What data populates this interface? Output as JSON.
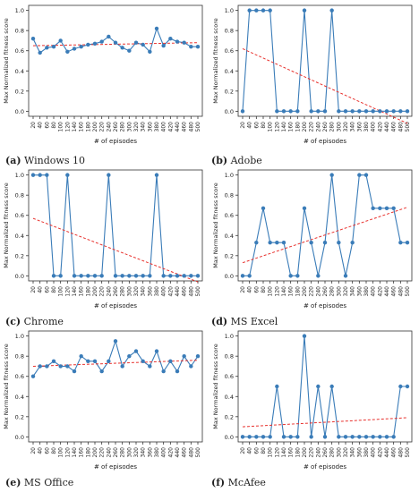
{
  "colors": {
    "series": "#3a7cb8",
    "trend": "#e8322e",
    "axis": "#333333",
    "text": "#222222"
  },
  "episodes": [
    "20",
    "40",
    "60",
    "80",
    "100",
    "120",
    "140",
    "160",
    "180",
    "200",
    "220",
    "240",
    "260",
    "280",
    "300",
    "320",
    "340",
    "360",
    "380",
    "400",
    "420",
    "440",
    "460",
    "480",
    "500"
  ],
  "ylabel": "Max Normalized fitness score",
  "xlabel": "# of episodes",
  "chart_data": [
    {
      "type": "line",
      "caption_tag": "(a)",
      "caption_text": "Windows 10",
      "ylim": [
        0.0,
        1.0
      ],
      "yticks": [
        "0.0",
        "0.2",
        "0.4",
        "0.6",
        "0.8",
        "1.0"
      ],
      "values": [
        0.72,
        0.58,
        0.63,
        0.64,
        0.7,
        0.59,
        0.62,
        0.64,
        0.66,
        0.67,
        0.69,
        0.74,
        0.68,
        0.63,
        0.6,
        0.68,
        0.66,
        0.59,
        0.82,
        0.65,
        0.72,
        0.69,
        0.68,
        0.64,
        0.64
      ],
      "trend": [
        0.65,
        0.68
      ]
    },
    {
      "type": "line",
      "caption_tag": "(b)",
      "caption_text": "Adobe",
      "ylim": [
        0.0,
        1.0
      ],
      "yticks": [
        "0.0",
        "0.2",
        "0.4",
        "0.6",
        "0.8",
        "1.0"
      ],
      "values": [
        0.0,
        1.0,
        1.0,
        1.0,
        1.0,
        0.0,
        0.0,
        0.0,
        0.0,
        1.0,
        0.0,
        0.0,
        0.0,
        1.0,
        0.0,
        0.0,
        0.0,
        0.0,
        0.0,
        0.0,
        0.0,
        0.0,
        0.0,
        0.0,
        0.0
      ],
      "trend": [
        0.62,
        -0.12
      ]
    },
    {
      "type": "line",
      "caption_tag": "(c)",
      "caption_text": "Chrome",
      "ylim": [
        0.0,
        1.0
      ],
      "yticks": [
        "0.0",
        "0.2",
        "0.4",
        "0.6",
        "0.8",
        "1.0"
      ],
      "values": [
        1.0,
        1.0,
        1.0,
        0.0,
        0.0,
        1.0,
        0.0,
        0.0,
        0.0,
        0.0,
        0.0,
        1.0,
        0.0,
        0.0,
        0.0,
        0.0,
        0.0,
        0.0,
        1.0,
        0.0,
        0.0,
        0.0,
        0.0,
        0.0,
        0.0
      ],
      "trend": [
        0.57,
        -0.06
      ]
    },
    {
      "type": "line",
      "caption_tag": "(d)",
      "caption_text": "MS Excel",
      "ylim": [
        0.0,
        1.0
      ],
      "yticks": [
        "0.0",
        "0.2",
        "0.4",
        "0.6",
        "0.8",
        "1.0"
      ],
      "values": [
        0.0,
        0.0,
        0.33,
        0.67,
        0.33,
        0.33,
        0.33,
        0.0,
        0.0,
        0.67,
        0.33,
        0.0,
        0.33,
        1.0,
        0.33,
        0.0,
        0.33,
        1.0,
        1.0,
        0.67,
        0.67,
        0.67,
        0.67,
        0.33,
        0.33
      ],
      "trend": [
        0.13,
        0.68
      ]
    },
    {
      "type": "line",
      "caption_tag": "(e)",
      "caption_text": "MS Office",
      "ylim": [
        0.0,
        1.0
      ],
      "yticks": [
        "0.0",
        "0.2",
        "0.4",
        "0.6",
        "0.8",
        "1.0"
      ],
      "values": [
        0.6,
        0.7,
        0.7,
        0.75,
        0.7,
        0.7,
        0.65,
        0.8,
        0.75,
        0.75,
        0.65,
        0.75,
        0.95,
        0.7,
        0.8,
        0.85,
        0.75,
        0.7,
        0.85,
        0.65,
        0.75,
        0.65,
        0.8,
        0.7,
        0.8
      ],
      "trend": [
        0.7,
        0.76
      ]
    },
    {
      "type": "line",
      "caption_tag": "(f)",
      "caption_text": "McAfee",
      "ylim": [
        0.0,
        1.0
      ],
      "yticks": [
        "0.0",
        "0.2",
        "0.4",
        "0.6",
        "0.8",
        "1.0"
      ],
      "values": [
        0.0,
        0.0,
        0.0,
        0.0,
        0.0,
        0.5,
        0.0,
        0.0,
        0.0,
        1.0,
        0.0,
        0.5,
        0.0,
        0.5,
        0.0,
        0.0,
        0.0,
        0.0,
        0.0,
        0.0,
        0.0,
        0.0,
        0.0,
        0.5,
        0.5
      ],
      "trend": [
        0.1,
        0.19
      ]
    }
  ]
}
